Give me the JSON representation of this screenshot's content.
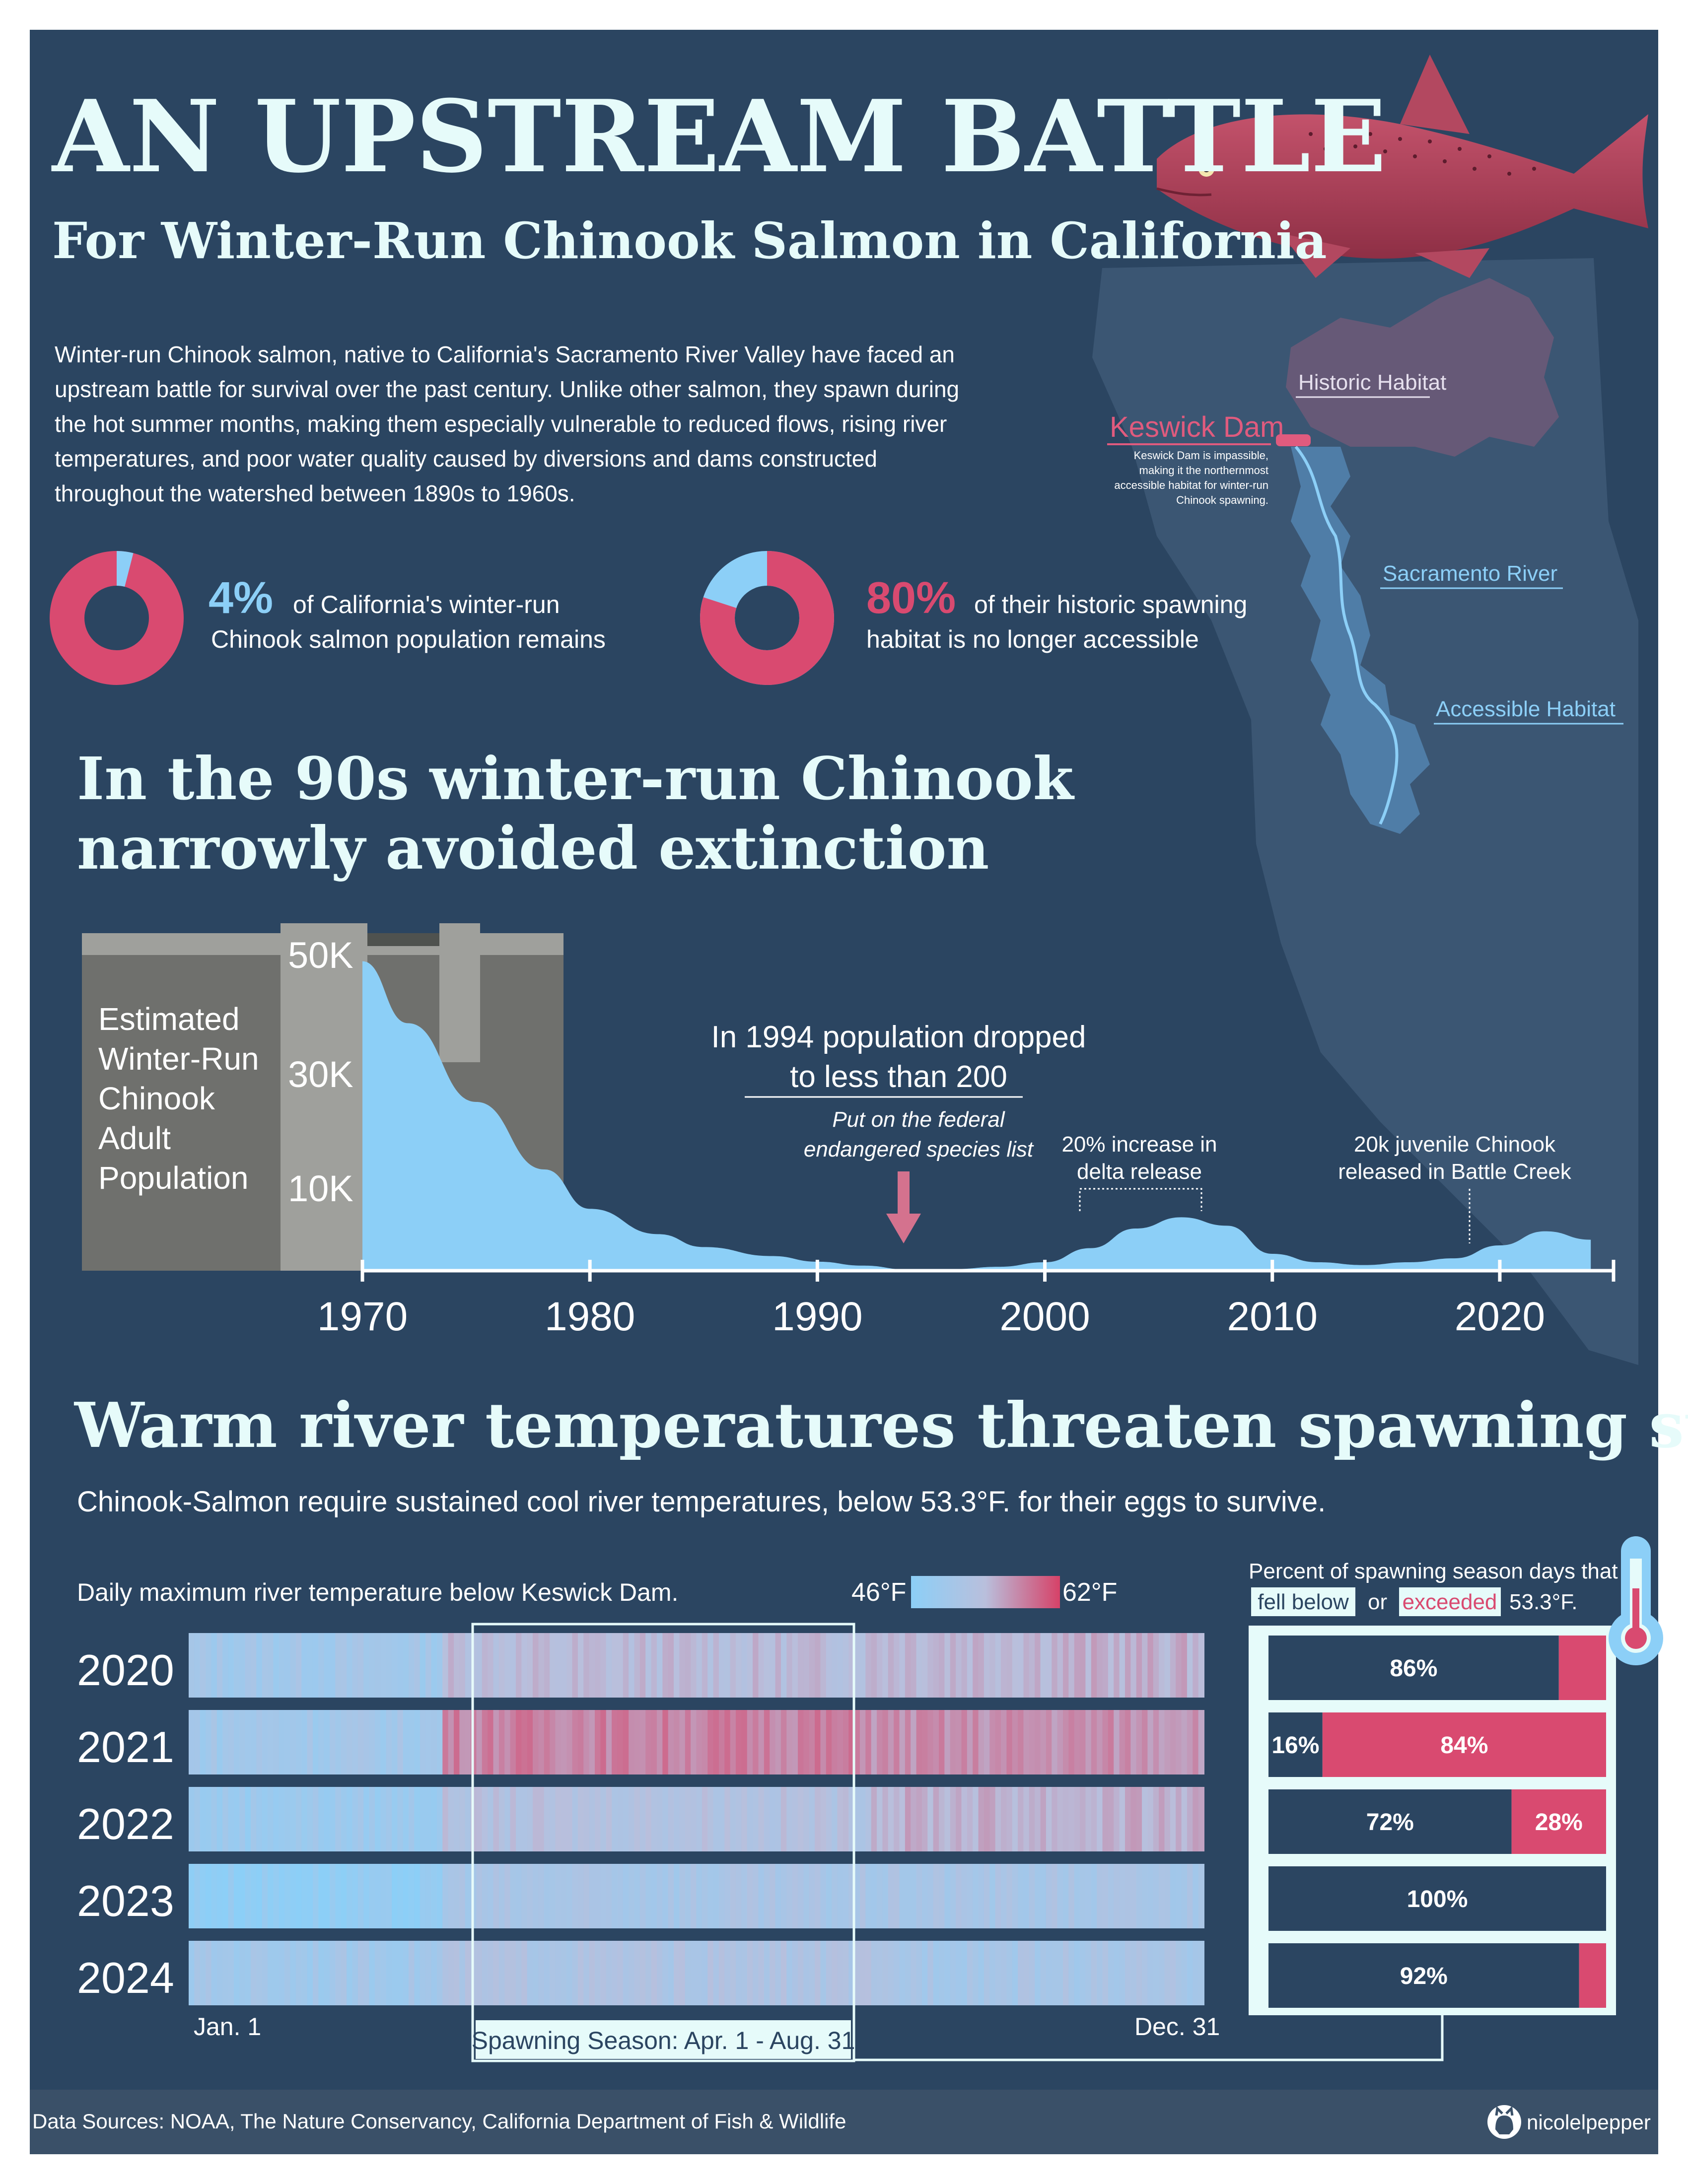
{
  "header": {
    "title": "AN UPSTREAM BATTLE",
    "subtitle": "For Winter-Run Chinook Salmon in California"
  },
  "intro": {
    "lines": [
      "Winter-run Chinook salmon, native to California's Sacramento River Valley have faced an",
      "upstream battle for survival over the past century. Unlike other salmon, they spawn during",
      "the hot summer months, making them especially vulnerable to reduced flows, rising river",
      "temperatures, and poor water quality caused by diversions and dams constructed",
      "throughout the watershed between 1890s to 1960s."
    ]
  },
  "stats": [
    {
      "value": "4%",
      "line1": "of California's winter-run",
      "line2": "Chinook salmon population remains",
      "fraction": 0.04
    },
    {
      "value": "80%",
      "line1": "of their historic spawning",
      "line2": "habitat is no longer accessible",
      "fraction": 0.8
    }
  ],
  "map": {
    "historic_label": "Historic Habitat",
    "dam_label": "Keswick Dam",
    "dam_note": [
      "Keswick Dam is impassible,",
      "making it the northernmost",
      "accessible habitat for winter-run",
      "Chinook spawning."
    ],
    "river_label": "Sacramento River",
    "accessible_label": "Accessible Habitat"
  },
  "section1": {
    "heading_line1": "In the 90s winter-run Chinook",
    "heading_line2": "narrowly avoided extinction"
  },
  "population": {
    "ylabel": [
      "Estimated",
      "Winter-Run",
      "Chinook",
      "Adult",
      "Population"
    ],
    "y_ticks": [
      "50K",
      "30K",
      "10K"
    ],
    "x_ticks": [
      "1970",
      "1980",
      "1990",
      "2000",
      "2010",
      "2020"
    ],
    "annotation_main": [
      "In 1994 population dropped",
      "to less than 200"
    ],
    "annotation_federal": [
      "Put on the federal",
      "endangered species list"
    ],
    "annotation_delta": [
      "20% increase in",
      "delta release"
    ],
    "annotation_juvenile": [
      "20k juvenile Chinook",
      "released in Battle Creek"
    ]
  },
  "section2": {
    "heading": "Warm river temperatures threaten spawning success",
    "subheading": "Chinook-Salmon require sustained cool river temperatures, below 53.3°F. for their eggs to survive."
  },
  "heatmap": {
    "caption": "Daily maximum river temperature below Keswick Dam.",
    "legend_min": "46°F",
    "legend_max": "62°F",
    "years": [
      "2020",
      "2021",
      "2022",
      "2023",
      "2024"
    ],
    "start_label": "Jan. 1",
    "end_label": "Dec. 31",
    "season_label": "Spawning Season: Apr. 1 - Aug. 31"
  },
  "percent": {
    "title_line1": "Percent of spawning season days that",
    "fell_below": "fell below",
    "or": "or",
    "exceeded": "exceeded",
    "threshold": "53.3°F.",
    "rows": [
      {
        "below": 86,
        "above": 14,
        "below_label": "86%",
        "above_label": ""
      },
      {
        "below": 16,
        "above": 84,
        "below_label": "16%",
        "above_label": "84%"
      },
      {
        "below": 72,
        "above": 28,
        "below_label": "72%",
        "above_label": "28%"
      },
      {
        "below": 100,
        "above": 0,
        "below_label": "100%",
        "above_label": ""
      },
      {
        "below": 92,
        "above": 8,
        "below_label": "92%",
        "above_label": ""
      }
    ]
  },
  "footer": {
    "sources": "Data Sources: NOAA, The Nature Conservancy, California Department of Fish & Wildlife",
    "handle": "nicolelpepper"
  },
  "colors": {
    "background": "#2b4561",
    "outer": "#ffffff",
    "title": "#e6fbfa",
    "pink": "#d94a70",
    "light_blue": "#8ccff7",
    "gray_dam": "#6f706d",
    "footer_bg": "#3a5068"
  },
  "chart_data": [
    {
      "type": "area",
      "title": "",
      "ylabel": "Estimated Winter-Run Chinook Adult Population",
      "xlabel": "",
      "x": [
        1970,
        1972,
        1975,
        1978,
        1980,
        1983,
        1985,
        1988,
        1990,
        1992,
        1994,
        1996,
        1998,
        2000,
        2002,
        2004,
        2006,
        2008,
        2010,
        2012,
        2014,
        2016,
        2018,
        2020,
        2022,
        2024
      ],
      "y": [
        55000,
        44000,
        30000,
        18000,
        11000,
        6500,
        4200,
        2600,
        1600,
        900,
        200,
        300,
        700,
        1500,
        4000,
        7500,
        9500,
        8000,
        3000,
        1500,
        1000,
        1500,
        2200,
        4500,
        7000,
        5500
      ],
      "ylim": [
        0,
        60000
      ],
      "xlim": [
        1970,
        2025
      ],
      "y_ticks": [
        "50K",
        "30K",
        "10K"
      ],
      "x_ticks": [
        1970,
        1980,
        1990,
        2000,
        2010,
        2020
      ],
      "annotations": [
        {
          "x": 1994,
          "text": "In 1994 population dropped to less than 200"
        },
        {
          "x": 1994,
          "text": "Put on the federal endangered species list"
        },
        {
          "x": 2004,
          "text": "20% increase in delta release"
        },
        {
          "x": 2018,
          "text": "20k juvenile Chinook released in Battle Creek"
        }
      ]
    },
    {
      "type": "heatmap",
      "title": "Daily maximum river temperature below Keswick Dam.",
      "rows": [
        "2020",
        "2021",
        "2022",
        "2023",
        "2024"
      ],
      "x_range": [
        "Jan. 1",
        "Dec. 31"
      ],
      "color_range_F": [
        46,
        62
      ],
      "highlight": "Spawning Season: Apr. 1 - Aug. 31",
      "approx_profile_F": {
        "2020": {
          "jan_mar": 50,
          "apr_aug": 54,
          "sep_dec": 55
        },
        "2021": {
          "jan_mar": 50,
          "apr_aug": 58,
          "sep_dec": 57
        },
        "2022": {
          "jan_mar": 49,
          "apr_aug": 53,
          "sep_dec": 55
        },
        "2023": {
          "jan_mar": 47,
          "apr_aug": 51,
          "sep_dec": 51
        },
        "2024": {
          "jan_mar": 50,
          "apr_aug": 52,
          "sep_dec": 51
        }
      }
    },
    {
      "type": "bar",
      "title": "Percent of spawning season days that fell below or exceeded 53.3°F.",
      "categories": [
        "2020",
        "2021",
        "2022",
        "2023",
        "2024"
      ],
      "series": [
        {
          "name": "fell below",
          "values": [
            86,
            16,
            72,
            100,
            92
          ]
        },
        {
          "name": "exceeded",
          "values": [
            14,
            84,
            28,
            0,
            8
          ]
        }
      ]
    }
  ]
}
